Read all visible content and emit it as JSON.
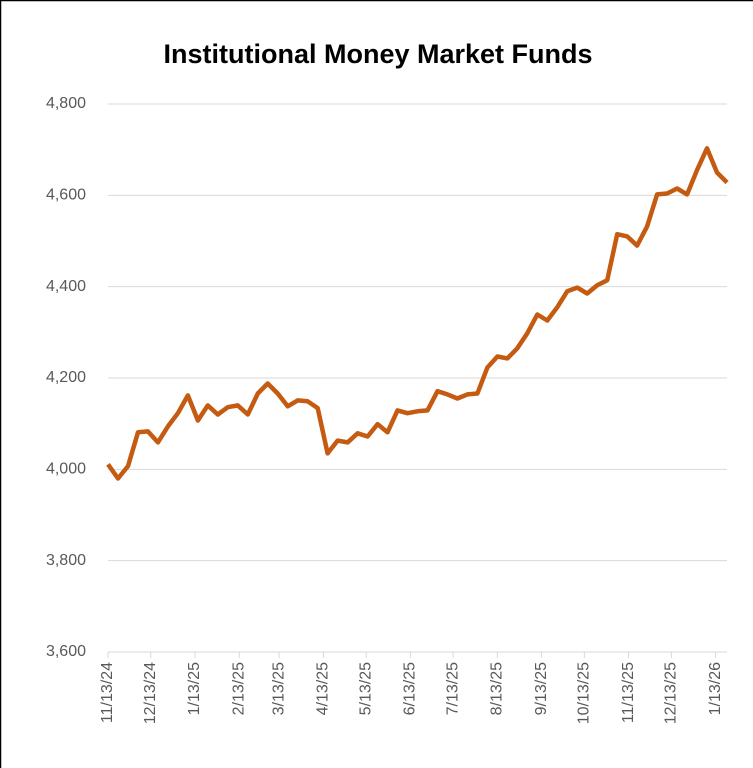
{
  "chart_data": {
    "type": "line",
    "title": "Institutional Money Market Funds",
    "x": [
      "11/13/24",
      "11/20/24",
      "11/27/24",
      "12/4/24",
      "12/11/24",
      "12/18/24",
      "12/25/24",
      "1/1/25",
      "1/8/25",
      "1/15/25",
      "1/22/25",
      "1/29/25",
      "2/5/25",
      "2/12/25",
      "2/19/25",
      "2/26/25",
      "3/5/25",
      "3/12/25",
      "3/19/25",
      "3/26/25",
      "4/2/25",
      "4/9/25",
      "4/16/25",
      "4/23/25",
      "4/30/25",
      "5/7/25",
      "5/14/25",
      "5/21/25",
      "5/28/25",
      "6/4/25",
      "6/11/25",
      "6/18/25",
      "6/25/25",
      "7/2/25",
      "7/9/25",
      "7/16/25",
      "7/23/25",
      "7/30/25",
      "8/6/25",
      "8/13/25",
      "8/20/25",
      "8/27/25",
      "9/3/25",
      "9/10/25",
      "9/17/25",
      "9/24/25",
      "10/1/25",
      "10/8/25",
      "10/15/25",
      "10/22/25",
      "10/29/25",
      "11/5/25",
      "11/12/25",
      "11/19/25",
      "11/26/25",
      "12/3/25",
      "12/10/25",
      "12/17/25",
      "12/24/25",
      "12/31/25",
      "1/7/26",
      "1/14/26",
      "1/21/26"
    ],
    "series": [
      {
        "name": "Institutional Money Market Funds",
        "color": "#c55a11",
        "values": [
          4011,
          3980,
          4007,
          4081,
          4083,
          4059,
          4094,
          4123,
          4162,
          4107,
          4140,
          4120,
          4136,
          4140,
          4120,
          4166,
          4188,
          4166,
          4138,
          4151,
          4149,
          4134,
          4035,
          4063,
          4059,
          4079,
          4072,
          4099,
          4081,
          4129,
          4123,
          4127,
          4129,
          4171,
          4164,
          4155,
          4164,
          4166,
          4223,
          4247,
          4243,
          4265,
          4298,
          4339,
          4326,
          4355,
          4390,
          4398,
          4385,
          4403,
          4414,
          4515,
          4510,
          4490,
          4532,
          4602,
          4604,
          4615,
          4602,
          4655,
          4703,
          4650,
          4628
        ]
      }
    ],
    "xlim": [
      "11/13/24",
      "1/21/26"
    ],
    "xticks": [
      "11/13/24",
      "12/13/24",
      "1/13/25",
      "2/13/25",
      "3/13/25",
      "4/13/25",
      "5/13/25",
      "6/13/25",
      "7/13/25",
      "8/13/25",
      "9/13/25",
      "10/13/25",
      "11/13/25",
      "12/13/25",
      "1/13/26"
    ],
    "ylim": [
      3600,
      4800
    ],
    "yticks": [
      {
        "value": 3600,
        "label": "3,600"
      },
      {
        "value": 3800,
        "label": "3,800"
      },
      {
        "value": 4000,
        "label": "4,000"
      },
      {
        "value": 4200,
        "label": "4,200"
      },
      {
        "value": 4400,
        "label": "4,400"
      },
      {
        "value": 4600,
        "label": "4,600"
      },
      {
        "value": 4800,
        "label": "4,800"
      }
    ],
    "grid": true
  }
}
